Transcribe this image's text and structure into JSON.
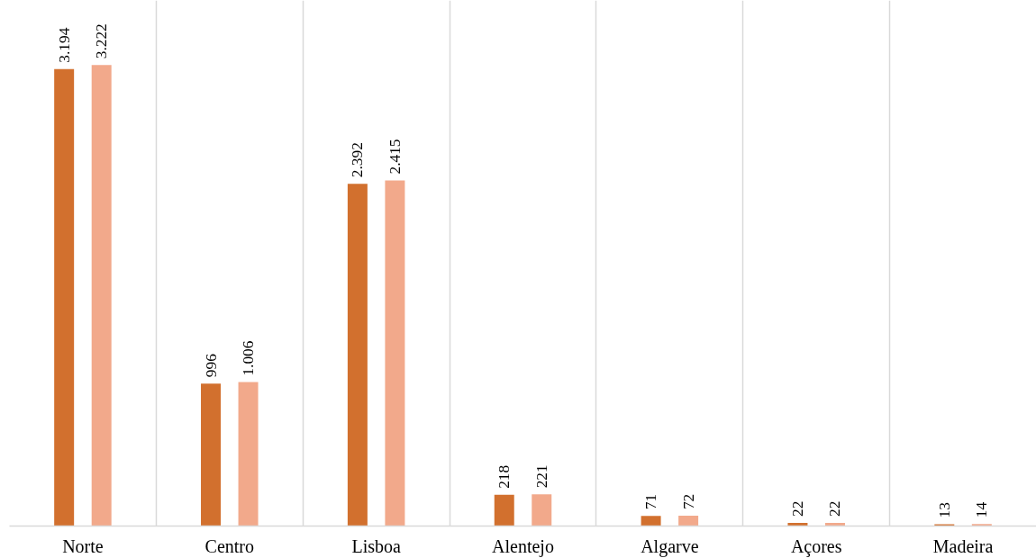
{
  "chart_data": {
    "type": "bar",
    "categories": [
      "Norte",
      "Centro",
      "Lisboa",
      "Alentejo",
      "Algarve",
      "Açores",
      "Madeira"
    ],
    "series": [
      {
        "color": "#d2702e",
        "values": [
          3194,
          996,
          2392,
          218,
          71,
          22,
          13
        ],
        "value_labels": [
          "3.194",
          "996",
          "2.392",
          "218",
          "71",
          "22",
          "13"
        ]
      },
      {
        "color": "#f2a98b",
        "values": [
          3222,
          1006,
          2415,
          221,
          72,
          22,
          14
        ],
        "value_labels": [
          "3.222",
          "1.006",
          "2.415",
          "221",
          "72",
          "22",
          "14"
        ]
      }
    ],
    "grid": "x"
  }
}
